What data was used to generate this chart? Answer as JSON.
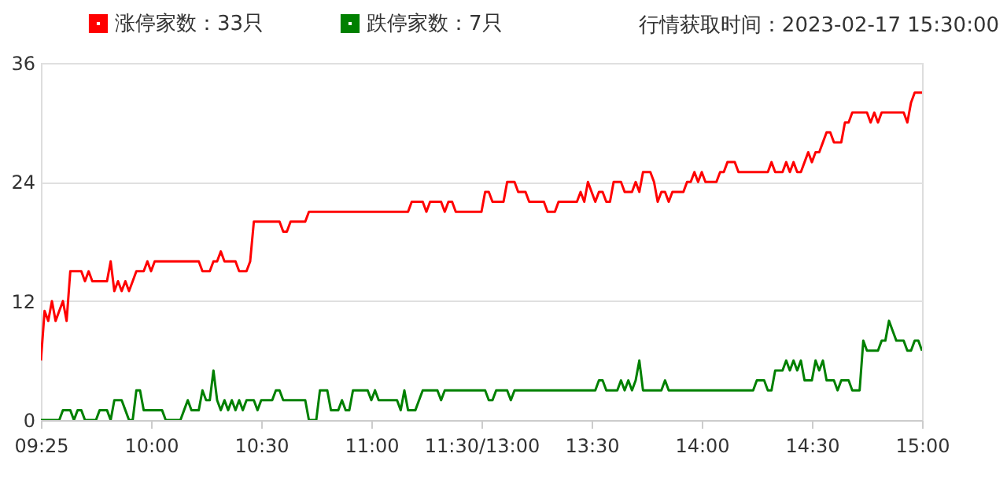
{
  "chart_data": {
    "type": "line",
    "annotations": [
      "行情获取时间：2023-02-17 15:30:00"
    ],
    "categories": [
      "09:25",
      null,
      null,
      null,
      null,
      null,
      null,
      null,
      null,
      null,
      null,
      null,
      null,
      null,
      null,
      null,
      null,
      null,
      null,
      null,
      null,
      null,
      null,
      null,
      null,
      null,
      null,
      null,
      null,
      null,
      "10:00",
      null,
      null,
      null,
      null,
      null,
      null,
      null,
      null,
      null,
      null,
      null,
      null,
      null,
      null,
      null,
      null,
      null,
      null,
      null,
      null,
      null,
      null,
      null,
      null,
      null,
      null,
      null,
      null,
      null,
      "10:30",
      null,
      null,
      null,
      null,
      null,
      null,
      null,
      null,
      null,
      null,
      null,
      null,
      null,
      null,
      null,
      null,
      null,
      null,
      null,
      null,
      null,
      null,
      null,
      null,
      null,
      null,
      null,
      null,
      null,
      "11:00",
      null,
      null,
      null,
      null,
      null,
      null,
      null,
      null,
      null,
      null,
      null,
      null,
      null,
      null,
      null,
      null,
      null,
      null,
      null,
      null,
      null,
      null,
      null,
      null,
      null,
      null,
      null,
      null,
      null,
      "11:30/13:00",
      null,
      null,
      null,
      null,
      null,
      null,
      null,
      null,
      null,
      null,
      null,
      null,
      null,
      null,
      null,
      null,
      null,
      null,
      null,
      null,
      null,
      null,
      null,
      null,
      null,
      null,
      null,
      null,
      null,
      "13:30",
      null,
      null,
      null,
      null,
      null,
      null,
      null,
      null,
      null,
      null,
      null,
      null,
      null,
      null,
      null,
      null,
      null,
      null,
      null,
      null,
      null,
      null,
      null,
      null,
      null,
      null,
      null,
      null,
      null,
      "14:00",
      null,
      null,
      null,
      null,
      null,
      null,
      null,
      null,
      null,
      null,
      null,
      null,
      null,
      null,
      null,
      null,
      null,
      null,
      null,
      null,
      null,
      null,
      null,
      null,
      null,
      null,
      null,
      null,
      null,
      "14:30",
      null,
      null,
      null,
      null,
      null,
      null,
      null,
      null,
      null,
      null,
      null,
      null,
      null,
      null,
      null,
      null,
      null,
      null,
      null,
      null,
      null,
      null,
      null,
      null,
      null,
      null,
      null,
      null,
      null,
      "15:00"
    ],
    "ylim": [
      0,
      36
    ],
    "yticks": [
      0,
      12,
      24,
      36
    ],
    "grid": "y",
    "legend": "top left",
    "marker": "none",
    "line_style": "solid",
    "series": [
      {
        "name": "涨停家数：33只",
        "color": "#ff0000",
        "values": [
          6,
          11,
          10,
          12,
          10,
          11,
          12,
          10,
          15,
          15,
          15,
          15,
          14,
          15,
          14,
          14,
          14,
          14,
          14,
          16,
          13,
          14,
          13,
          14,
          13,
          14,
          15,
          15,
          15,
          16,
          15,
          16,
          16,
          16,
          16,
          16,
          16,
          16,
          16,
          16,
          16,
          16,
          16,
          16,
          15,
          15,
          15,
          16,
          16,
          17,
          16,
          16,
          16,
          16,
          15,
          15,
          15,
          16,
          20,
          20,
          20,
          20,
          20,
          20,
          20,
          20,
          19,
          19,
          20,
          20,
          20,
          20,
          20,
          21,
          21,
          21,
          21,
          21,
          21,
          21,
          21,
          21,
          21,
          21,
          21,
          21,
          21,
          21,
          21,
          21,
          21,
          21,
          21,
          21,
          21,
          21,
          21,
          21,
          21,
          21,
          21,
          22,
          22,
          22,
          22,
          21,
          22,
          22,
          22,
          22,
          21,
          22,
          22,
          21,
          21,
          21,
          21,
          21,
          21,
          21,
          21,
          23,
          23,
          22,
          22,
          22,
          22,
          24,
          24,
          24,
          23,
          23,
          23,
          22,
          22,
          22,
          22,
          22,
          21,
          21,
          21,
          22,
          22,
          22,
          22,
          22,
          22,
          23,
          22,
          24,
          23,
          22,
          23,
          23,
          22,
          22,
          24,
          24,
          24,
          23,
          23,
          23,
          24,
          23,
          25,
          25,
          25,
          24,
          22,
          23,
          23,
          22,
          23,
          23,
          23,
          23,
          24,
          24,
          25,
          24,
          25,
          24,
          24,
          24,
          24,
          25,
          25,
          26,
          26,
          26,
          25,
          25,
          25,
          25,
          25,
          25,
          25,
          25,
          25,
          26,
          25,
          25,
          25,
          26,
          25,
          26,
          25,
          25,
          26,
          27,
          26,
          27,
          27,
          28,
          29,
          29,
          28,
          28,
          28,
          30,
          30,
          31,
          31,
          31,
          31,
          31,
          30,
          31,
          30,
          31,
          31,
          31,
          31,
          31,
          31,
          31,
          30,
          32,
          33,
          33,
          33
        ]
      },
      {
        "name": "跌停家数：7只",
        "color": "#008000",
        "values": [
          0,
          0,
          0,
          0,
          0,
          0,
          1,
          1,
          1,
          0,
          1,
          1,
          0,
          0,
          0,
          0,
          1,
          1,
          1,
          0,
          2,
          2,
          2,
          1,
          0,
          0,
          3,
          3,
          1,
          1,
          1,
          1,
          1,
          1,
          0,
          0,
          0,
          0,
          0,
          1,
          2,
          1,
          1,
          1,
          3,
          2,
          2,
          5,
          2,
          1,
          2,
          1,
          2,
          1,
          2,
          1,
          2,
          2,
          2,
          1,
          2,
          2,
          2,
          2,
          3,
          3,
          2,
          2,
          2,
          2,
          2,
          2,
          2,
          0,
          0,
          0,
          3,
          3,
          3,
          1,
          1,
          1,
          2,
          1,
          1,
          3,
          3,
          3,
          3,
          3,
          2,
          3,
          2,
          2,
          2,
          2,
          2,
          2,
          1,
          3,
          1,
          1,
          1,
          2,
          3,
          3,
          3,
          3,
          3,
          2,
          3,
          3,
          3,
          3,
          3,
          3,
          3,
          3,
          3,
          3,
          3,
          3,
          2,
          2,
          3,
          3,
          3,
          3,
          2,
          3,
          3,
          3,
          3,
          3,
          3,
          3,
          3,
          3,
          3,
          3,
          3,
          3,
          3,
          3,
          3,
          3,
          3,
          3,
          3,
          3,
          3,
          3,
          4,
          4,
          3,
          3,
          3,
          3,
          4,
          3,
          4,
          3,
          4,
          6,
          3,
          3,
          3,
          3,
          3,
          3,
          4,
          3,
          3,
          3,
          3,
          3,
          3,
          3,
          3,
          3,
          3,
          3,
          3,
          3,
          3,
          3,
          3,
          3,
          3,
          3,
          3,
          3,
          3,
          3,
          3,
          4,
          4,
          4,
          3,
          3,
          5,
          5,
          5,
          6,
          5,
          6,
          5,
          6,
          4,
          4,
          4,
          6,
          5,
          6,
          4,
          4,
          4,
          3,
          4,
          4,
          4,
          3,
          3,
          3,
          8,
          7,
          7,
          7,
          7,
          8,
          8,
          10,
          9,
          8,
          8,
          8,
          7,
          7,
          8,
          8,
          7
        ]
      }
    ]
  }
}
